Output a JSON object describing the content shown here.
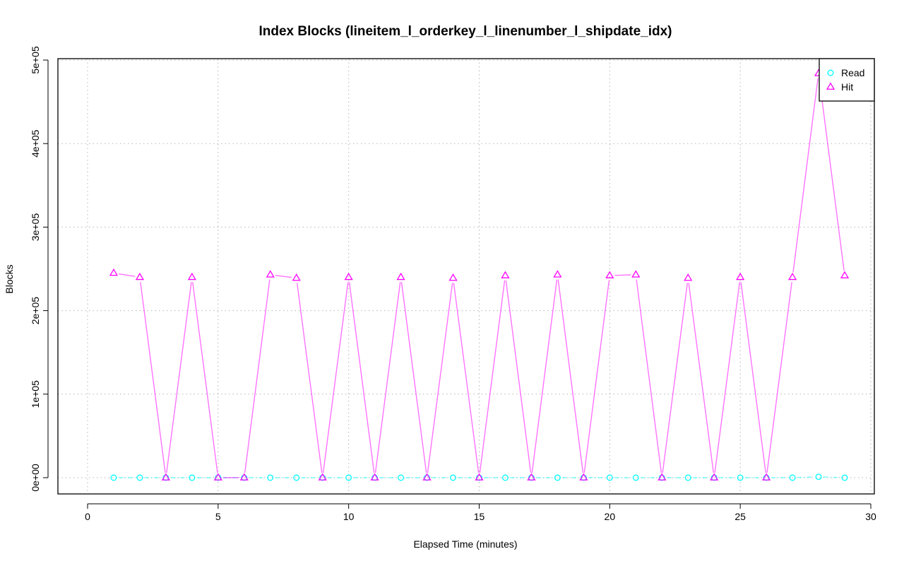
{
  "chart_data": {
    "type": "line",
    "title": "Index Blocks (lineitem_l_orderkey_l_linenumber_l_shipdate_idx)",
    "xlabel": "Elapsed Time (minutes)",
    "ylabel": "Blocks",
    "xlim": [
      0,
      30
    ],
    "ylim": [
      0,
      500000
    ],
    "x_ticks": [
      0,
      5,
      10,
      15,
      20,
      25,
      30
    ],
    "x_tick_labels": [
      "0",
      "5",
      "10",
      "15",
      "20",
      "25",
      "30"
    ],
    "y_ticks": [
      0,
      100000,
      200000,
      300000,
      400000,
      500000
    ],
    "y_tick_labels": [
      "0e+00",
      "1e+05",
      "2e+05",
      "3e+05",
      "4e+05",
      "5e+05"
    ],
    "grid": true,
    "legend_position": "top-right",
    "x": [
      1,
      2,
      3,
      4,
      5,
      6,
      7,
      8,
      9,
      10,
      11,
      12,
      13,
      14,
      15,
      16,
      17,
      18,
      19,
      20,
      21,
      22,
      23,
      24,
      25,
      26,
      27,
      28,
      29
    ],
    "series": [
      {
        "name": "Read",
        "color": "#00ffff",
        "marker": "circle",
        "values": [
          0,
          0,
          0,
          0,
          0,
          0,
          0,
          0,
          0,
          0,
          0,
          0,
          0,
          0,
          0,
          0,
          0,
          0,
          0,
          0,
          0,
          0,
          0,
          0,
          0,
          0,
          0,
          1000,
          0
        ]
      },
      {
        "name": "Hit",
        "color": "#ff00ff",
        "marker": "triangle",
        "values": [
          245000,
          240000,
          0,
          240000,
          0,
          0,
          243000,
          239000,
          0,
          240000,
          0,
          240000,
          0,
          239000,
          0,
          242000,
          0,
          243000,
          0,
          242000,
          243000,
          0,
          239000,
          0,
          240000,
          0,
          240000,
          484000,
          242000
        ]
      }
    ]
  }
}
